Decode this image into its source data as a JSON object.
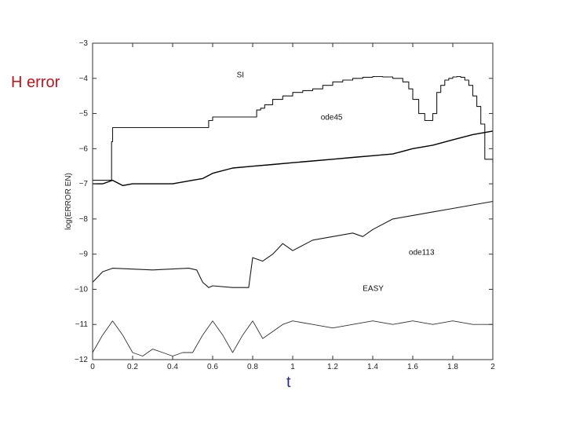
{
  "labels": {
    "left_annotation": "H error",
    "bottom_annotation": "t"
  },
  "chart_data": {
    "type": "line",
    "title": "",
    "xlabel": "",
    "ylabel": "log(ERROR EN)",
    "xlim": [
      0,
      2
    ],
    "ylim": [
      -12,
      -3
    ],
    "grid": false,
    "legend": "none",
    "x_ticks": [
      0,
      0.2,
      0.4,
      0.6,
      0.8,
      1,
      1.2,
      1.4,
      1.6,
      1.8,
      2
    ],
    "x_tick_labels": [
      "0",
      "0.2",
      "0.4",
      "0.6",
      "0.8",
      "1",
      "1.2",
      "1.4",
      "1.6",
      "1.8",
      "2"
    ],
    "y_ticks": [
      -12,
      -11,
      -10,
      -9,
      -8,
      -7,
      -6,
      -5,
      -4,
      -3
    ],
    "y_tick_labels": [
      "−12",
      "−11",
      "−10",
      "−9",
      "−8",
      "−7",
      "−6",
      "−5",
      "−4",
      "−3"
    ],
    "series": [
      {
        "name": "SI",
        "x": [
          0,
          0.09,
          0.095,
          0.1,
          0.55,
          0.58,
          0.6,
          0.8,
          0.82,
          0.84,
          0.86,
          0.9,
          0.95,
          1.0,
          1.05,
          1.1,
          1.15,
          1.2,
          1.25,
          1.3,
          1.35,
          1.4,
          1.45,
          1.5,
          1.55,
          1.58,
          1.6,
          1.63,
          1.66,
          1.68,
          1.7,
          1.72,
          1.74,
          1.76,
          1.78,
          1.8,
          1.82,
          1.84,
          1.86,
          1.88,
          1.9,
          1.92,
          1.94,
          1.96,
          2.0
        ],
        "y": [
          -6.9,
          -6.9,
          -5.8,
          -5.4,
          -5.4,
          -5.2,
          -5.1,
          -5.1,
          -4.9,
          -4.85,
          -4.75,
          -4.6,
          -4.5,
          -4.4,
          -4.35,
          -4.3,
          -4.2,
          -4.1,
          -4.05,
          -4.0,
          -3.97,
          -3.95,
          -3.96,
          -4.0,
          -4.1,
          -4.3,
          -4.6,
          -5.0,
          -5.2,
          -5.2,
          -5.0,
          -4.4,
          -4.2,
          -4.05,
          -4.0,
          -3.96,
          -3.95,
          -3.97,
          -4.05,
          -4.2,
          -4.5,
          -4.8,
          -5.3,
          -6.3,
          -6.4
        ]
      },
      {
        "name": "ode45",
        "x": [
          0,
          0.05,
          0.1,
          0.15,
          0.2,
          0.3,
          0.4,
          0.5,
          0.55,
          0.6,
          0.7,
          0.8,
          0.9,
          1.0,
          1.1,
          1.2,
          1.3,
          1.4,
          1.5,
          1.6,
          1.7,
          1.8,
          1.9,
          2.0
        ],
        "y": [
          -7.0,
          -7.0,
          -6.9,
          -7.05,
          -7.0,
          -7.0,
          -7.0,
          -6.9,
          -6.85,
          -6.7,
          -6.55,
          -6.5,
          -6.45,
          -6.4,
          -6.35,
          -6.3,
          -6.25,
          -6.2,
          -6.15,
          -6.0,
          -5.9,
          -5.75,
          -5.6,
          -5.5
        ]
      },
      {
        "name": "ode113",
        "x": [
          0,
          0.05,
          0.1,
          0.3,
          0.48,
          0.52,
          0.55,
          0.58,
          0.6,
          0.7,
          0.78,
          0.8,
          0.85,
          0.9,
          0.95,
          1.0,
          1.1,
          1.2,
          1.3,
          1.35,
          1.4,
          1.5,
          1.6,
          1.7,
          1.8,
          1.9,
          2.0
        ],
        "y": [
          -9.8,
          -9.5,
          -9.4,
          -9.45,
          -9.4,
          -9.45,
          -9.8,
          -9.95,
          -9.9,
          -9.95,
          -9.95,
          -9.1,
          -9.2,
          -9.0,
          -8.7,
          -8.9,
          -8.6,
          -8.5,
          -8.4,
          -8.5,
          -8.3,
          -8.0,
          -7.9,
          -7.8,
          -7.7,
          -7.6,
          -7.5
        ]
      },
      {
        "name": "EASY",
        "x": [
          0,
          0.05,
          0.1,
          0.15,
          0.2,
          0.25,
          0.3,
          0.35,
          0.4,
          0.45,
          0.5,
          0.55,
          0.6,
          0.65,
          0.7,
          0.75,
          0.8,
          0.85,
          0.9,
          0.95,
          1.0,
          1.1,
          1.2,
          1.3,
          1.4,
          1.5,
          1.6,
          1.7,
          1.8,
          1.9,
          2.0
        ],
        "y": [
          -11.8,
          -11.3,
          -10.9,
          -11.3,
          -11.8,
          -11.9,
          -11.7,
          -11.8,
          -11.9,
          -11.8,
          -11.8,
          -11.3,
          -10.9,
          -11.3,
          -11.8,
          -11.3,
          -10.9,
          -11.4,
          -11.2,
          -11.0,
          -10.9,
          -11.0,
          -11.1,
          -11.0,
          -10.9,
          -11.0,
          -10.9,
          -11.0,
          -10.9,
          -11.0,
          -11.0
        ]
      }
    ],
    "annotations": [
      {
        "text": "SI",
        "x": 0.72,
        "y": -3.97
      },
      {
        "text": "ode45",
        "x": 1.14,
        "y": -5.18
      },
      {
        "text": "ode113",
        "x": 1.58,
        "y": -9.02
      },
      {
        "text": "EASY",
        "x": 1.35,
        "y": -10.05
      }
    ]
  }
}
